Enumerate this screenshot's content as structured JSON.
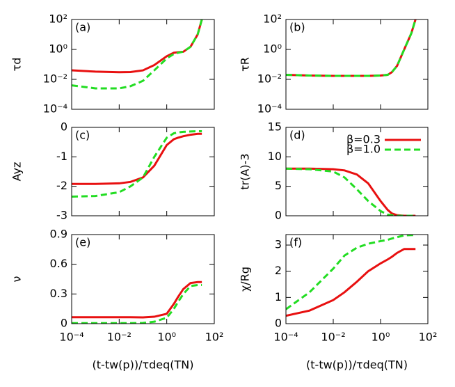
{
  "chart_data": [
    {
      "type": "line",
      "title": "(a)",
      "y_label": "τd",
      "log_x": true,
      "log_y": true,
      "xlim": [
        0.0001,
        100
      ],
      "xticks": [
        {
          "value": 0.0001,
          "label": "10⁻⁴"
        },
        {
          "value": 0.01,
          "label": "10⁻²"
        },
        {
          "value": 1,
          "label": "10⁰"
        },
        {
          "value": 100,
          "label": "10²"
        }
      ],
      "ylim": [
        0.0001,
        100
      ],
      "yticks": [
        {
          "value": 0.0001,
          "label": "10⁻⁴"
        },
        {
          "value": 0.01,
          "label": "10⁻²"
        },
        {
          "value": 1,
          "label": "10⁰"
        },
        {
          "value": 100,
          "label": "10²"
        }
      ],
      "x": [
        0.0001,
        0.001,
        0.01,
        0.03,
        0.1,
        0.3,
        1,
        2,
        3,
        5,
        10,
        20,
        30
      ],
      "series": [
        {
          "color": "#e81010",
          "dash": false,
          "values": [
            0.04,
            0.033,
            0.03,
            0.031,
            0.04,
            0.09,
            0.35,
            0.6,
            0.65,
            0.7,
            1.5,
            10,
            100
          ]
        },
        {
          "color": "#22dd22",
          "dash": true,
          "values": [
            0.004,
            0.0025,
            0.0025,
            0.0035,
            0.008,
            0.04,
            0.25,
            0.5,
            0.6,
            0.7,
            1.5,
            10,
            100
          ]
        }
      ]
    },
    {
      "type": "line",
      "title": "(b)",
      "y_label": "τR",
      "log_x": true,
      "log_y": true,
      "xlim": [
        0.0001,
        100
      ],
      "xticks": [
        {
          "value": 0.0001,
          "label": "10⁻⁴"
        },
        {
          "value": 0.01,
          "label": "10⁻²"
        },
        {
          "value": 1,
          "label": "10⁰"
        },
        {
          "value": 100,
          "label": "10²"
        }
      ],
      "ylim": [
        0.0001,
        100
      ],
      "yticks": [
        {
          "value": 0.0001,
          "label": "10⁻⁴"
        },
        {
          "value": 0.01,
          "label": "10⁻²"
        },
        {
          "value": 1,
          "label": "10⁰"
        },
        {
          "value": 100,
          "label": "10²"
        }
      ],
      "x": [
        0.0001,
        0.001,
        0.01,
        0.03,
        0.1,
        0.3,
        1,
        2,
        3,
        5,
        10,
        20,
        30
      ],
      "series": [
        {
          "color": "#e81010",
          "dash": false,
          "values": [
            0.02,
            0.018,
            0.017,
            0.017,
            0.017,
            0.017,
            0.018,
            0.02,
            0.03,
            0.08,
            1,
            12,
            100
          ]
        },
        {
          "color": "#22dd22",
          "dash": true,
          "values": [
            0.02,
            0.018,
            0.017,
            0.017,
            0.017,
            0.017,
            0.018,
            0.02,
            0.03,
            0.08,
            1,
            12,
            100
          ]
        }
      ]
    },
    {
      "type": "line",
      "title": "(c)",
      "y_label": "Ayz",
      "log_x": true,
      "log_y": false,
      "xlim": [
        0.0001,
        100
      ],
      "xticks": [
        {
          "value": 0.0001,
          "label": "10⁻⁴"
        },
        {
          "value": 0.01,
          "label": "10⁻²"
        },
        {
          "value": 1,
          "label": "10⁰"
        },
        {
          "value": 100,
          "label": "10²"
        }
      ],
      "ylim": [
        -3,
        0
      ],
      "yticks": [
        -3,
        -2,
        -1,
        0
      ],
      "x": [
        0.0001,
        0.001,
        0.01,
        0.03,
        0.1,
        0.3,
        1,
        2,
        3,
        5,
        10,
        20,
        30
      ],
      "series": [
        {
          "color": "#e81010",
          "dash": false,
          "values": [
            -1.92,
            -1.92,
            -1.9,
            -1.85,
            -1.7,
            -1.3,
            -0.6,
            -0.4,
            -0.35,
            -0.3,
            -0.25,
            -0.22,
            -0.22
          ]
        },
        {
          "color": "#22dd22",
          "dash": true,
          "values": [
            -2.35,
            -2.33,
            -2.2,
            -2.0,
            -1.7,
            -1.0,
            -0.35,
            -0.2,
            -0.17,
            -0.15,
            -0.14,
            -0.13,
            -0.13
          ]
        }
      ]
    },
    {
      "type": "line",
      "title": "(d)",
      "y_label": "tr(A)-3",
      "log_x": true,
      "log_y": false,
      "legend": "top-right",
      "xlim": [
        0.0001,
        100
      ],
      "xticks": [
        {
          "value": 0.0001,
          "label": "10⁻⁴"
        },
        {
          "value": 0.01,
          "label": "10⁻²"
        },
        {
          "value": 1,
          "label": "10⁰"
        },
        {
          "value": 100,
          "label": "10²"
        }
      ],
      "ylim": [
        0,
        15
      ],
      "yticks": [
        0,
        5,
        10,
        15
      ],
      "x": [
        0.0001,
        0.001,
        0.01,
        0.03,
        0.1,
        0.3,
        1,
        2,
        3,
        5,
        10,
        20,
        30
      ],
      "series": [
        {
          "name": "β=0.3",
          "color": "#e81010",
          "dash": false,
          "values": [
            8,
            8,
            7.9,
            7.7,
            7,
            5.5,
            2.5,
            1,
            0.4,
            0.1,
            0,
            0,
            0
          ]
        },
        {
          "name": "β=1.0",
          "color": "#22dd22",
          "dash": true,
          "values": [
            8,
            7.9,
            7.5,
            6.5,
            4.5,
            2.5,
            0.8,
            0.2,
            0.1,
            0,
            0,
            0,
            0
          ]
        }
      ]
    },
    {
      "type": "line",
      "title": "(e)",
      "y_label": "ν",
      "x_label": "(t-tw(p))/τdeq(TN)",
      "log_x": true,
      "log_y": false,
      "xlim": [
        0.0001,
        100
      ],
      "xticks": [
        {
          "value": 0.0001,
          "label": "10⁻⁴"
        },
        {
          "value": 0.01,
          "label": "10⁻²"
        },
        {
          "value": 1,
          "label": "10⁰"
        },
        {
          "value": 100,
          "label": "10²"
        }
      ],
      "ylim": [
        0,
        0.9
      ],
      "yticks": [
        0,
        0.3,
        0.6,
        0.9
      ],
      "x": [
        0.0001,
        0.001,
        0.01,
        0.03,
        0.1,
        0.3,
        1,
        2,
        3,
        5,
        10,
        20,
        30
      ],
      "series": [
        {
          "color": "#e81010",
          "dash": false,
          "values": [
            0.065,
            0.065,
            0.065,
            0.065,
            0.063,
            0.07,
            0.1,
            0.2,
            0.27,
            0.35,
            0.41,
            0.42,
            0.42
          ]
        },
        {
          "color": "#22dd22",
          "dash": true,
          "values": [
            0.005,
            0.005,
            0.005,
            0.005,
            0.007,
            0.02,
            0.06,
            0.15,
            0.22,
            0.3,
            0.38,
            0.39,
            0.39
          ]
        }
      ]
    },
    {
      "type": "line",
      "title": "(f)",
      "y_label": "χ/Rg",
      "x_label": "(t-tw(p))/τdeq(TN)",
      "log_x": true,
      "log_y": false,
      "xlim": [
        0.0001,
        100
      ],
      "xticks": [
        {
          "value": 0.0001,
          "label": "10⁻⁴"
        },
        {
          "value": 0.01,
          "label": "10⁻²"
        },
        {
          "value": 1,
          "label": "10⁰"
        },
        {
          "value": 100,
          "label": "10²"
        }
      ],
      "ylim": [
        0,
        3.4
      ],
      "yticks": [
        0,
        1,
        2,
        3
      ],
      "x": [
        0.0001,
        0.001,
        0.01,
        0.03,
        0.1,
        0.3,
        1,
        2,
        3,
        5,
        10,
        20,
        30
      ],
      "series": [
        {
          "color": "#e81010",
          "dash": false,
          "values": [
            0.3,
            0.5,
            0.9,
            1.2,
            1.6,
            2.0,
            2.3,
            2.45,
            2.55,
            2.7,
            2.85,
            2.85,
            2.85
          ]
        },
        {
          "color": "#22dd22",
          "dash": true,
          "values": [
            0.55,
            1.2,
            2.1,
            2.6,
            2.9,
            3.05,
            3.15,
            3.2,
            3.25,
            3.3,
            3.37,
            3.38,
            3.38
          ]
        }
      ]
    }
  ]
}
